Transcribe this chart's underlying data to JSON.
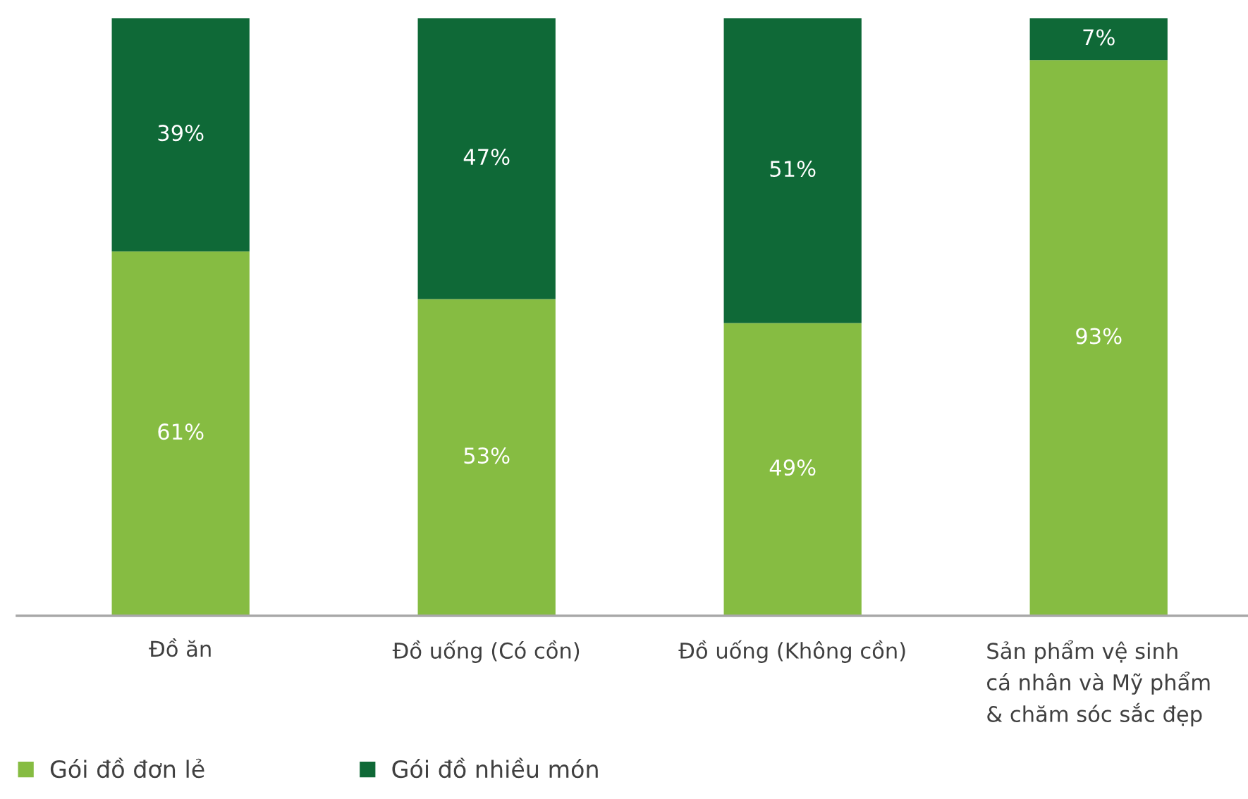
{
  "chart_data": {
    "type": "bar",
    "stacked": true,
    "categories": [
      "Đồ ăn",
      "Đồ uống (Có cồn)",
      "Đồ uống (Không cồn)",
      "Sản phẩm vệ sinh\ncá nhân và Mỹ phẩm\n& chăm sóc sắc đẹp"
    ],
    "series": [
      {
        "name": "Gói đồ đơn lẻ",
        "color": "#86bc42",
        "values": [
          61,
          53,
          49,
          93
        ],
        "value_labels": [
          "61%",
          "53%",
          "49%",
          "93%"
        ]
      },
      {
        "name": "Gói đồ nhiều món",
        "color": "#0f6937",
        "values": [
          39,
          47,
          51,
          7
        ],
        "value_labels": [
          "39%",
          "47%",
          "51%",
          "7%"
        ]
      }
    ],
    "ylim": [
      0,
      100
    ],
    "tick_labels": "x",
    "legend": "bottom left"
  }
}
